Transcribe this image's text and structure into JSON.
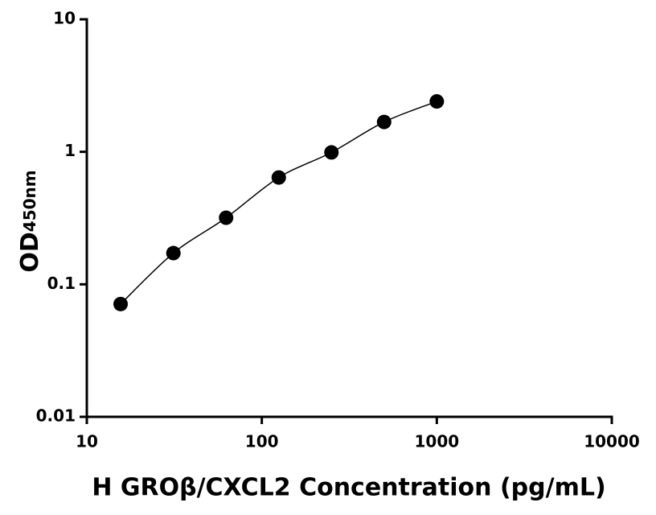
{
  "chart_data": {
    "type": "scatter",
    "x_label": "H GROβ/CXCL2 Concentration (pg/mL)",
    "y_label": "OD",
    "y_label_subscript": "450nm",
    "x_log": true,
    "y_log": true,
    "xlim": [
      10,
      10000
    ],
    "ylim": [
      0.01,
      10
    ],
    "xticks": [
      10,
      100,
      1000,
      10000
    ],
    "yticks": [
      0.01,
      0.1,
      1,
      10
    ],
    "fit_curve": true,
    "series": [
      {
        "color": "#000000",
        "x": [
          15.6,
          31.25,
          62.5,
          125,
          250,
          500,
          1000
        ],
        "values": [
          0.071,
          0.172,
          0.318,
          0.64,
          0.99,
          1.68,
          2.4
        ]
      }
    ]
  }
}
